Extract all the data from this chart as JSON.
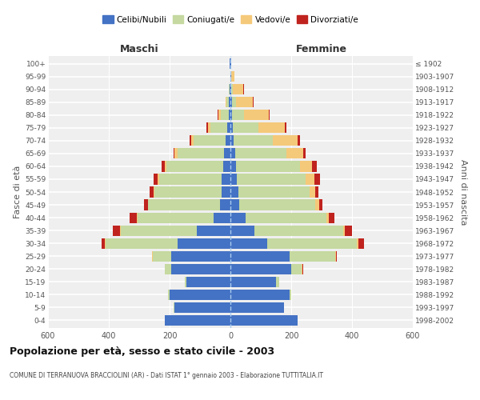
{
  "age_groups": [
    "0-4",
    "5-9",
    "10-14",
    "15-19",
    "20-24",
    "25-29",
    "30-34",
    "35-39",
    "40-44",
    "45-49",
    "50-54",
    "55-59",
    "60-64",
    "65-69",
    "70-74",
    "75-79",
    "80-84",
    "85-89",
    "90-94",
    "95-99",
    "100+"
  ],
  "birth_years": [
    "1998-2002",
    "1993-1997",
    "1988-1992",
    "1983-1987",
    "1978-1982",
    "1973-1977",
    "1968-1972",
    "1963-1967",
    "1958-1962",
    "1953-1957",
    "1948-1952",
    "1943-1947",
    "1938-1942",
    "1933-1937",
    "1928-1932",
    "1923-1927",
    "1918-1922",
    "1913-1917",
    "1908-1912",
    "1903-1907",
    "≤ 1902"
  ],
  "male_celibe": [
    215,
    185,
    200,
    145,
    195,
    195,
    175,
    110,
    55,
    35,
    30,
    30,
    25,
    20,
    15,
    10,
    6,
    4,
    2,
    1,
    2
  ],
  "male_coniug": [
    2,
    2,
    5,
    5,
    20,
    60,
    235,
    250,
    250,
    235,
    220,
    205,
    185,
    155,
    105,
    55,
    25,
    8,
    2,
    0,
    0
  ],
  "male_vedov": [
    0,
    0,
    0,
    0,
    2,
    2,
    2,
    2,
    2,
    2,
    2,
    5,
    5,
    8,
    10,
    10,
    8,
    5,
    2,
    0,
    0
  ],
  "male_divor": [
    0,
    0,
    0,
    0,
    0,
    2,
    12,
    25,
    25,
    12,
    15,
    12,
    12,
    5,
    5,
    5,
    2,
    0,
    0,
    0,
    0
  ],
  "female_celibe": [
    220,
    175,
    195,
    150,
    200,
    195,
    120,
    80,
    50,
    30,
    25,
    22,
    18,
    15,
    10,
    8,
    5,
    4,
    2,
    2,
    2
  ],
  "female_coniug": [
    2,
    2,
    5,
    10,
    35,
    150,
    295,
    290,
    265,
    250,
    235,
    225,
    210,
    170,
    130,
    85,
    40,
    15,
    5,
    0,
    0
  ],
  "female_vedov": [
    0,
    0,
    0,
    0,
    2,
    2,
    5,
    5,
    8,
    12,
    18,
    30,
    40,
    55,
    80,
    85,
    80,
    55,
    35,
    10,
    0
  ],
  "female_divor": [
    0,
    0,
    0,
    0,
    2,
    2,
    20,
    25,
    18,
    10,
    12,
    18,
    15,
    8,
    8,
    5,
    5,
    2,
    2,
    2,
    0
  ],
  "color_celibe": "#4472c4",
  "color_coniug": "#c5d9a0",
  "color_vedov": "#f5c97a",
  "color_divor": "#c0231e",
  "bg_color": "#efefef",
  "title": "Popolazione per età, sesso e stato civile - 2003",
  "subtitle": "COMUNE DI TERRANUOVA BRACCIOLINI (AR) - Dati ISTAT 1° gennaio 2003 - Elaborazione TUTTITALIA.IT",
  "label_maschi": "Maschi",
  "label_femmine": "Femmine",
  "ylabel_left": "Fasce di età",
  "ylabel_right": "Anni di nascita",
  "xlim": 600,
  "legend_labels": [
    "Celibi/Nubili",
    "Coniugati/e",
    "Vedovi/e",
    "Divorziati/e"
  ]
}
